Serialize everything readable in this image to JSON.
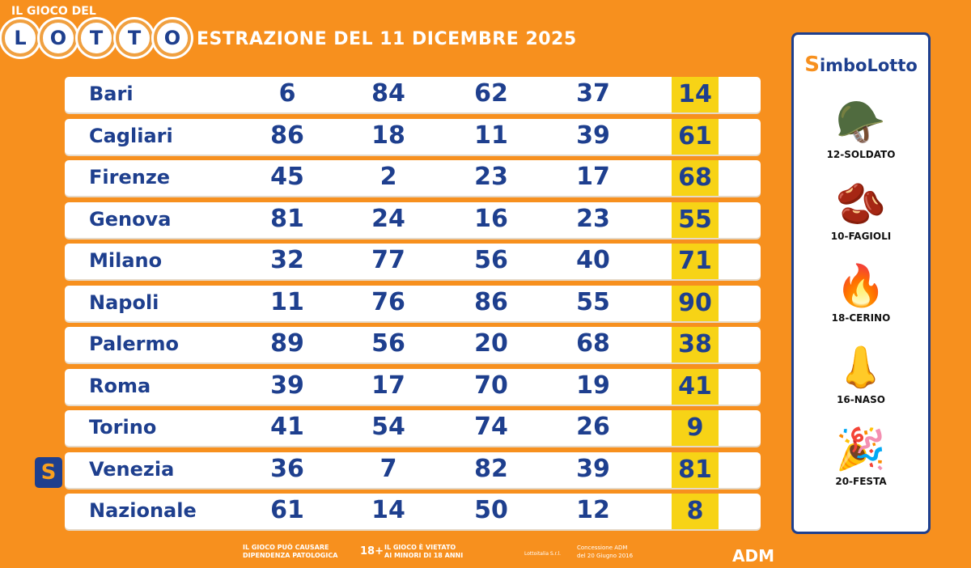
{
  "logo": {
    "top": "IL GIOCO DEL",
    "letters": [
      "L",
      "O",
      "T",
      "T",
      "O"
    ]
  },
  "title": "ESTRAZIONE DEL 11 DICEMBRE 2025",
  "rows": [
    {
      "city": "Bari",
      "numbers": [
        "6",
        "84",
        "62",
        "37"
      ],
      "extra": "14"
    },
    {
      "city": "Cagliari",
      "numbers": [
        "86",
        "18",
        "11",
        "39"
      ],
      "extra": "61"
    },
    {
      "city": "Firenze",
      "numbers": [
        "45",
        "2",
        "23",
        "17"
      ],
      "extra": "68"
    },
    {
      "city": "Genova",
      "numbers": [
        "81",
        "24",
        "16",
        "23"
      ],
      "extra": "55"
    },
    {
      "city": "Milano",
      "numbers": [
        "32",
        "77",
        "56",
        "40"
      ],
      "extra": "71"
    },
    {
      "city": "Napoli",
      "numbers": [
        "11",
        "76",
        "86",
        "55"
      ],
      "extra": "90"
    },
    {
      "city": "Palermo",
      "numbers": [
        "89",
        "56",
        "20",
        "68"
      ],
      "extra": "38"
    },
    {
      "city": "Roma",
      "numbers": [
        "39",
        "17",
        "70",
        "19"
      ],
      "extra": "41"
    },
    {
      "city": "Torino",
      "numbers": [
        "41",
        "54",
        "74",
        "26"
      ],
      "extra": "9"
    },
    {
      "city": "Venezia",
      "numbers": [
        "36",
        "7",
        "82",
        "39"
      ],
      "extra": "81"
    },
    {
      "city": "Nazionale",
      "numbers": [
        "61",
        "14",
        "50",
        "12"
      ],
      "extra": "8"
    }
  ],
  "simbolotto": {
    "badge": "S",
    "title_s": "S",
    "title_rest": "imboLotto",
    "symbols": [
      {
        "label": "12-SOLDATO",
        "icon": "soldier-helmet-icon",
        "glyph": "🪖"
      },
      {
        "label": "10-FAGIOLI",
        "icon": "beans-icon",
        "glyph": "🫘"
      },
      {
        "label": "18-CERINO",
        "icon": "match-icon",
        "glyph": "🔥"
      },
      {
        "label": "16-NASO",
        "icon": "nose-icon",
        "glyph": "👃"
      },
      {
        "label": "20-FESTA",
        "icon": "party-popper-icon",
        "glyph": "🎉"
      }
    ]
  },
  "footer": {
    "warn1": "IL GIOCO PUÒ CAUSARE",
    "warn2": "DIPENDENZA PATOLOGICA",
    "age": "18+",
    "age1": "IL GIOCO È VIETATO",
    "age2": "AI MINORI DI 18 ANNI",
    "company": "Lottoitalia S.r.l.",
    "conc1": "Concessione ADM",
    "conc2": "del 20 Giugno 2016",
    "adm": "ADM"
  },
  "colors": {
    "bg": "#f7901e",
    "navy": "#1e3f8e",
    "yellow": "#f7d316"
  }
}
